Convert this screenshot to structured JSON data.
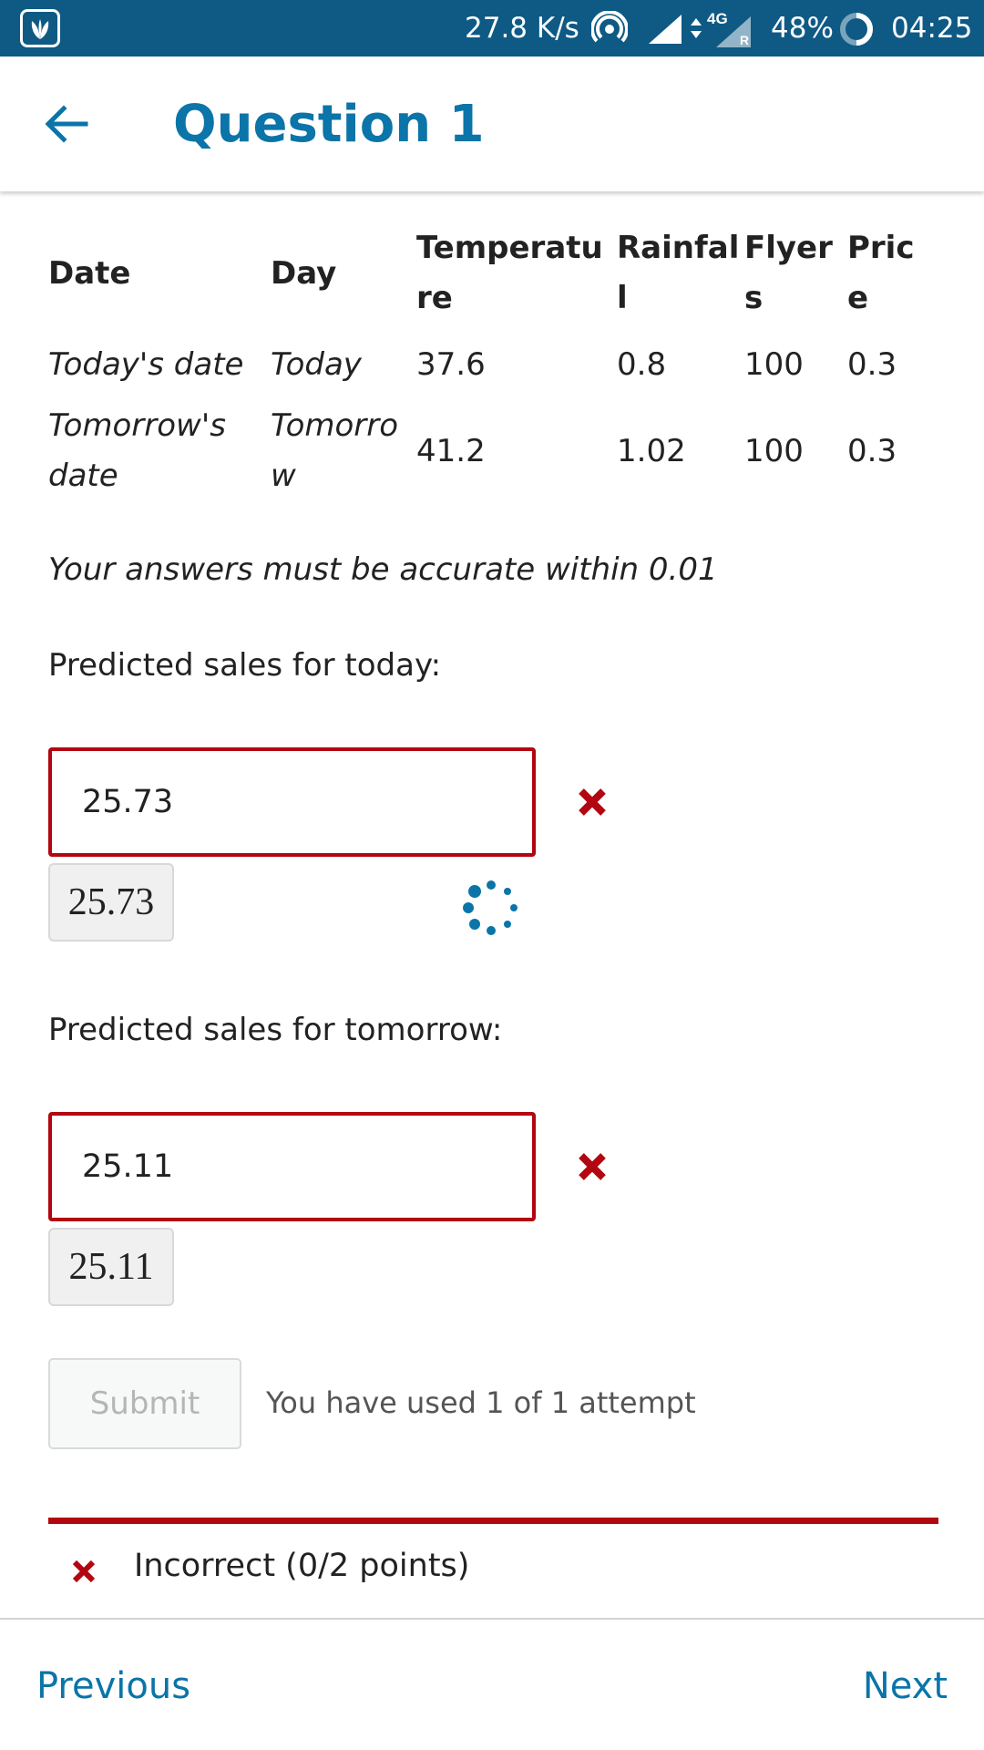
{
  "status_bar": {
    "net_speed": "27.8 K/s",
    "net_type": "4G",
    "roaming": "R",
    "battery": "48%",
    "time": "04:25",
    "icons": [
      "app-logo-icon",
      "hotspot-icon",
      "signal-icon",
      "battery-icon"
    ]
  },
  "header": {
    "title": "Question 1",
    "back_icon": "arrow-left-icon"
  },
  "table": {
    "headers": [
      "Date",
      "Day",
      "Temperature",
      "Rainfall",
      "Flyers",
      "Price"
    ],
    "rows": [
      [
        "Today's date",
        "Today",
        "37.6",
        "0.8",
        "100",
        "0.3"
      ],
      [
        "Tomorrow's date",
        "Tomorrow",
        "41.2",
        "1.02",
        "100",
        "0.3"
      ]
    ]
  },
  "note": "Your answers must be accurate within 0.01",
  "questions": [
    {
      "label": "Predicted sales for today:",
      "value": "25.73",
      "preview": "25.73",
      "status": "incorrect"
    },
    {
      "label": "Predicted sales for tomorrow:",
      "value": "25.11",
      "preview": "25.11",
      "status": "incorrect"
    }
  ],
  "submit": {
    "label": "Submit",
    "attempts_text": "You have used 1 of 1 attempt"
  },
  "result": {
    "text": "Incorrect (0/2 points)"
  },
  "nav": {
    "previous": "Previous",
    "next": "Next"
  },
  "colors": {
    "status_bar": "#0e5a85",
    "accent": "#0b74a8",
    "error": "#b20610"
  }
}
